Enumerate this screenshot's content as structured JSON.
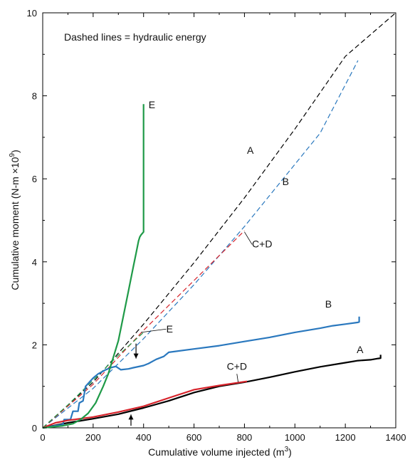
{
  "chart_data": {
    "type": "line",
    "annotation": "Dashed lines = hydraulic energy",
    "xlabel": "Cumulative volume injected (m",
    "xlabel_sup": "3",
    "xlabel_end": ")",
    "ylabel": "Cumulative moment (N-m ×10",
    "ylabel_sup": "9",
    "ylabel_end": ")",
    "xlim": [
      0,
      1400
    ],
    "ylim": [
      0,
      10
    ],
    "xticks": [
      "0",
      "200",
      "400",
      "600",
      "800",
      "1000",
      "1200",
      "1400"
    ],
    "yticks": [
      "0",
      "2",
      "4",
      "6",
      "8",
      "10"
    ],
    "grid": false,
    "series": [
      {
        "name": "A",
        "style": "solid",
        "color": "#000000",
        "x": [
          0,
          100,
          200,
          300,
          360,
          400,
          500,
          600,
          700,
          800,
          900,
          1000,
          1100,
          1200,
          1250,
          1300,
          1330,
          1340,
          1340
        ],
        "y": [
          0,
          0.12,
          0.22,
          0.33,
          0.42,
          0.48,
          0.65,
          0.85,
          1.0,
          1.1,
          1.22,
          1.35,
          1.47,
          1.57,
          1.62,
          1.64,
          1.67,
          1.68,
          1.76
        ]
      },
      {
        "name": "B",
        "style": "solid",
        "color": "#2a78be",
        "x": [
          0,
          80,
          85,
          110,
          120,
          140,
          145,
          160,
          170,
          200,
          220,
          250,
          270,
          290,
          310,
          340,
          360,
          400,
          420,
          450,
          480,
          500,
          600,
          700,
          800,
          900,
          1000,
          1100,
          1150,
          1200,
          1250,
          1255,
          1255
        ],
        "y": [
          0,
          0.08,
          0.2,
          0.2,
          0.4,
          0.4,
          0.6,
          0.65,
          1.0,
          1.2,
          1.3,
          1.4,
          1.45,
          1.48,
          1.4,
          1.42,
          1.45,
          1.5,
          1.55,
          1.65,
          1.72,
          1.82,
          1.9,
          1.98,
          2.08,
          2.18,
          2.3,
          2.4,
          2.46,
          2.5,
          2.54,
          2.55,
          2.68
        ]
      },
      {
        "name": "C+D",
        "style": "solid",
        "color": "#d6232b",
        "x": [
          0,
          50,
          100,
          200,
          300,
          400,
          500,
          600,
          700,
          810
        ],
        "y": [
          0,
          0.12,
          0.18,
          0.26,
          0.38,
          0.52,
          0.72,
          0.92,
          1.02,
          1.12
        ]
      },
      {
        "name": "E",
        "style": "solid",
        "color": "#1f9a48",
        "x": [
          0,
          80,
          120,
          150,
          180,
          210,
          240,
          260,
          280,
          300,
          320,
          340,
          360,
          370,
          380,
          385,
          390,
          400,
          400
        ],
        "y": [
          0,
          0.05,
          0.1,
          0.2,
          0.35,
          0.6,
          1.0,
          1.3,
          1.7,
          2.1,
          2.7,
          3.3,
          3.9,
          4.2,
          4.5,
          4.6,
          4.65,
          4.72,
          7.8
        ]
      },
      {
        "name": "A",
        "style": "dashed",
        "color": "#000000",
        "x": [
          0,
          200,
          400,
          600,
          800,
          1000,
          1200,
          1400
        ],
        "y": [
          0,
          1.1,
          2.5,
          3.98,
          5.54,
          7.2,
          8.95,
          10.0
        ]
      },
      {
        "name": "B",
        "style": "dashed",
        "color": "#2a78be",
        "x": [
          0,
          200,
          400,
          600,
          800,
          1000,
          1100,
          1250
        ],
        "y": [
          0,
          0.95,
          2.15,
          3.45,
          4.85,
          6.35,
          7.1,
          8.85
        ]
      },
      {
        "name": "C+D",
        "style": "dashed",
        "color": "#d6232b",
        "x": [
          0,
          200,
          400,
          600,
          800
        ],
        "y": [
          0,
          1.05,
          2.35,
          3.55,
          4.75
        ]
      },
      {
        "name": "E",
        "style": "dashed",
        "color": "#1f9a48",
        "x": [
          0,
          100,
          200,
          300,
          400
        ],
        "y": [
          0,
          0.55,
          1.15,
          1.75,
          2.3
        ]
      }
    ],
    "labels": [
      {
        "text": "E",
        "x": 420,
        "y": 7.7
      },
      {
        "text": "A",
        "x": 810,
        "y": 6.6
      },
      {
        "text": "B",
        "x": 950,
        "y": 5.85
      },
      {
        "text": "C+D",
        "x": 830,
        "y": 4.35
      },
      {
        "text": "E",
        "x": 490,
        "y": 2.3
      },
      {
        "text": "B",
        "x": 1120,
        "y": 2.9
      },
      {
        "text": "A",
        "x": 1245,
        "y": 1.8
      },
      {
        "text": "C+D",
        "x": 730,
        "y": 1.4
      }
    ],
    "arrows": [
      {
        "x": 370,
        "y_from": 2.03,
        "y_to": 1.67
      },
      {
        "x": 350,
        "y_from": 0.05,
        "y_to": 0.32
      }
    ]
  }
}
